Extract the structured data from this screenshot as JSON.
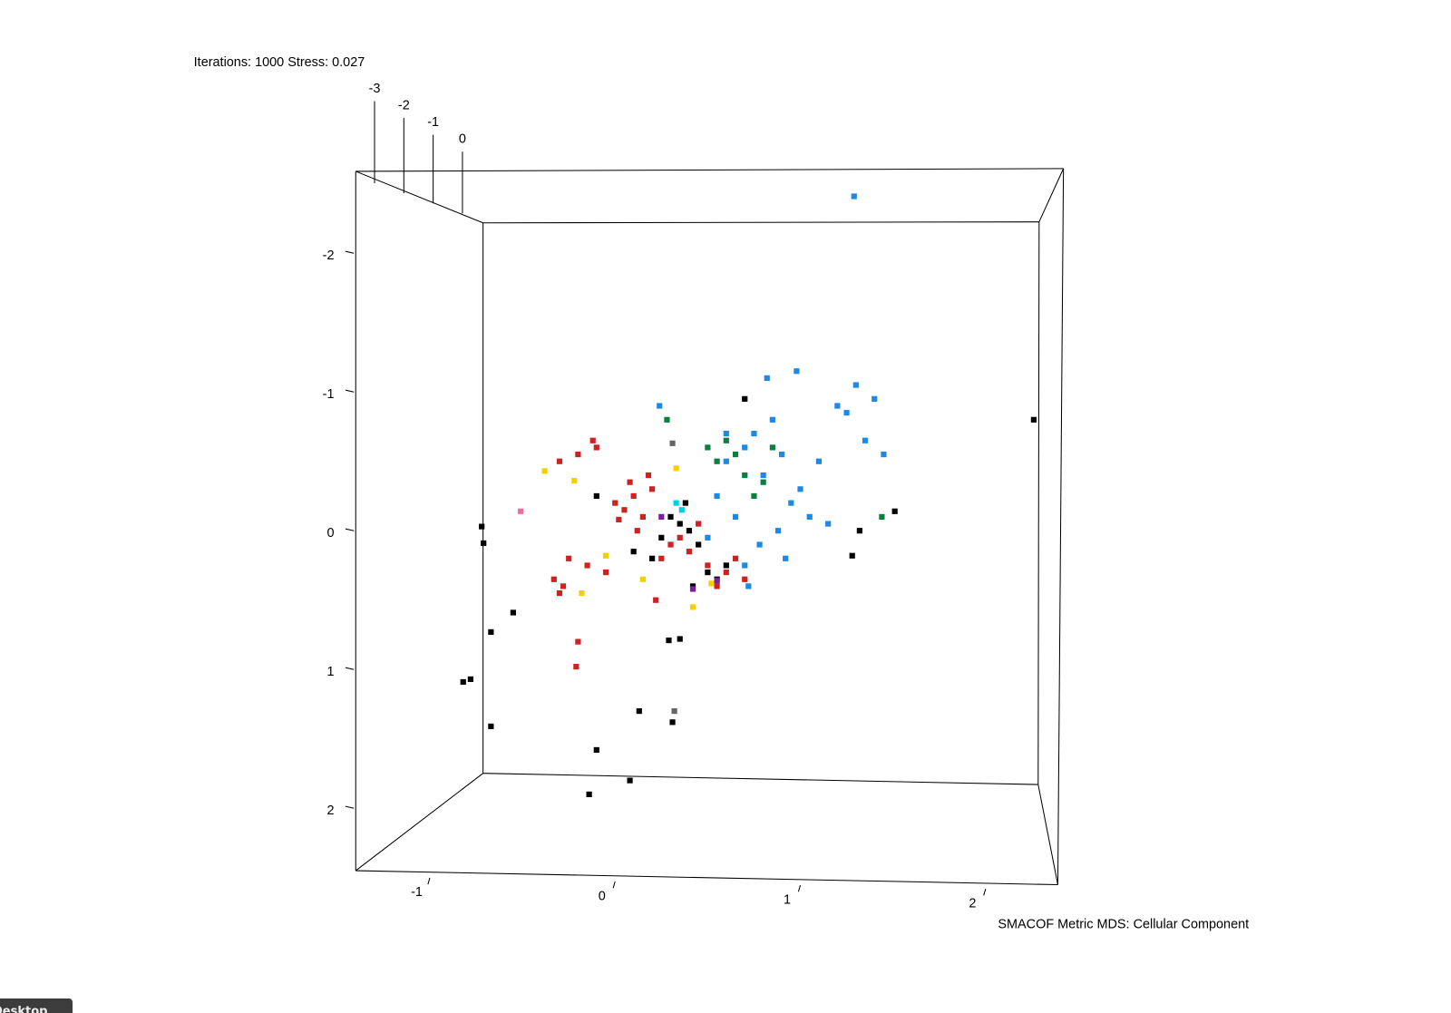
{
  "chart_data": {
    "type": "scatter",
    "title": "Iterations: 1000 Stress: 0.027",
    "caption": "SMACOF Metric MDS: Cellular Component",
    "xlim": [
      -1.4,
      2.39
    ],
    "ylim": [
      -2.59,
      2.45
    ],
    "xticks": [
      -1,
      0,
      1,
      2
    ],
    "yticks": [
      -2,
      -1,
      0,
      1,
      2
    ],
    "zticks": [
      -3,
      -2,
      -1,
      0
    ],
    "series": [
      {
        "color": "#cc2222",
        "x": [
          0.0,
          0.05,
          0.1,
          0.15,
          0.2,
          -0.1,
          -0.2,
          -0.3,
          -0.25,
          0.3,
          0.4,
          0.5,
          0.6,
          0.7,
          0.45,
          0.35,
          -0.15,
          0.08,
          0.12,
          0.18,
          -0.05,
          0.25,
          -0.28,
          -0.33,
          0.55,
          0.65,
          -0.2,
          -0.21,
          0.02,
          0.22,
          -0.12,
          -0.3
        ],
        "y": [
          -0.2,
          -0.15,
          -0.25,
          -0.1,
          -0.3,
          -0.6,
          -0.55,
          -0.5,
          0.2,
          0.1,
          0.15,
          0.25,
          0.3,
          0.35,
          -0.05,
          0.05,
          0.25,
          -0.35,
          0.0,
          -0.4,
          0.3,
          0.2,
          0.4,
          0.35,
          0.4,
          0.2,
          0.8,
          0.98,
          -0.08,
          0.5,
          -0.65,
          0.45
        ]
      },
      {
        "color": "#1e88e5",
        "x": [
          0.6,
          0.7,
          0.8,
          0.9,
          1.0,
          0.75,
          0.85,
          0.95,
          1.1,
          1.2,
          1.3,
          1.4,
          1.45,
          0.65,
          0.55,
          0.5,
          0.78,
          0.88,
          1.05,
          1.15,
          0.92,
          0.7,
          0.82,
          0.98,
          1.25,
          1.35,
          0.24,
          0.6,
          1.29,
          0.72
        ],
        "y": [
          -0.5,
          -0.6,
          -0.4,
          -0.55,
          -0.3,
          -0.7,
          -0.8,
          -0.2,
          -0.5,
          -0.9,
          -1.05,
          -0.95,
          -0.55,
          -0.1,
          -0.25,
          0.05,
          0.1,
          0.0,
          -0.1,
          -0.05,
          0.2,
          0.25,
          -1.1,
          -1.15,
          -0.85,
          -0.65,
          -0.9,
          -0.7,
          -2.41,
          0.4
        ]
      },
      {
        "color": "#000000",
        "x": [
          0.3,
          0.35,
          0.4,
          0.45,
          0.25,
          0.2,
          0.1,
          0.5,
          0.55,
          0.38,
          0.42,
          -0.1,
          0.6,
          0.7,
          2.26,
          -0.72,
          -0.71,
          -0.55,
          -0.67,
          -0.82,
          -0.78,
          -0.67,
          -0.1,
          0.08,
          -0.14,
          0.13,
          0.31,
          1.51,
          1.32,
          1.28,
          0.29,
          0.35
        ],
        "y": [
          -0.1,
          -0.05,
          0.0,
          0.1,
          0.05,
          0.2,
          0.15,
          0.3,
          0.35,
          -0.2,
          0.4,
          -0.25,
          0.25,
          -0.95,
          -0.8,
          -0.03,
          0.09,
          0.59,
          0.73,
          1.09,
          1.07,
          1.41,
          1.58,
          1.8,
          1.9,
          1.3,
          1.38,
          -0.14,
          0.0,
          0.18,
          0.79,
          0.78
        ]
      },
      {
        "color": "#0a7f3f",
        "x": [
          0.5,
          0.55,
          0.65,
          0.7,
          0.8,
          0.75,
          0.6,
          0.85,
          1.44,
          0.28
        ],
        "y": [
          -0.6,
          -0.5,
          -0.55,
          -0.4,
          -0.35,
          -0.25,
          -0.65,
          -0.6,
          -0.1,
          -0.8
        ]
      },
      {
        "color": "#f5d000",
        "x": [
          -0.38,
          -0.22,
          0.33,
          0.42,
          -0.18,
          0.15,
          0.52,
          -0.05
        ],
        "y": [
          -0.43,
          -0.36,
          -0.45,
          0.55,
          0.45,
          0.35,
          0.38,
          0.18
        ]
      },
      {
        "color": "#7b1fa2",
        "x": [
          0.25,
          0.42,
          0.55
        ],
        "y": [
          -0.1,
          0.42,
          0.36
        ]
      },
      {
        "color": "#f06ea0",
        "x": [
          -0.51
        ],
        "y": [
          -0.14
        ]
      },
      {
        "color": "#00d0e0",
        "x": [
          0.33,
          0.36
        ],
        "y": [
          -0.2,
          -0.15
        ]
      },
      {
        "color": "#666666",
        "x": [
          0.32,
          0.31
        ],
        "y": [
          1.3,
          -0.63
        ]
      }
    ]
  },
  "taskbar": {
    "label": "Desktop"
  }
}
